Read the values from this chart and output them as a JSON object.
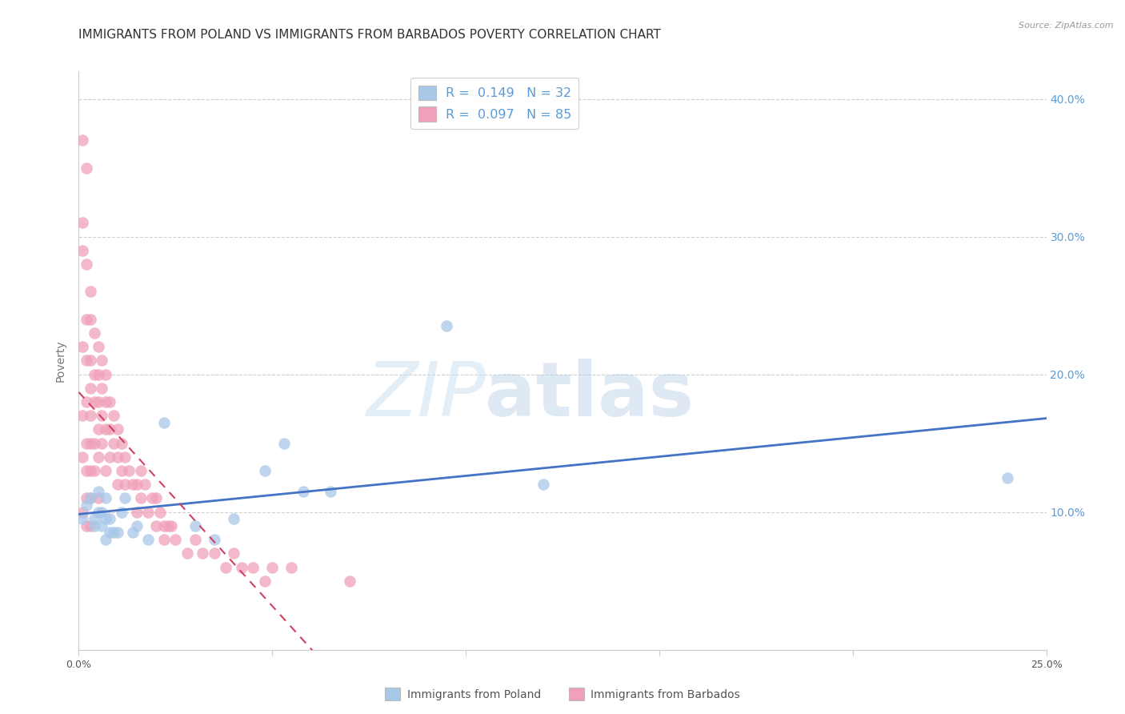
{
  "title": "IMMIGRANTS FROM POLAND VS IMMIGRANTS FROM BARBADOS POVERTY CORRELATION CHART",
  "source": "Source: ZipAtlas.com",
  "ylabel": "Poverty",
  "xlim": [
    0.0,
    0.25
  ],
  "ylim": [
    0.0,
    0.42
  ],
  "poland_R": 0.149,
  "poland_N": 32,
  "barbados_R": 0.097,
  "barbados_N": 85,
  "poland_color": "#a8c8e8",
  "barbados_color": "#f0a0b8",
  "poland_line_color": "#4472c4",
  "barbados_line_color": "#d04060",
  "poland_x": [
    0.001,
    0.002,
    0.003,
    0.004,
    0.004,
    0.005,
    0.005,
    0.006,
    0.006,
    0.007,
    0.007,
    0.007,
    0.008,
    0.008,
    0.009,
    0.01,
    0.011,
    0.012,
    0.014,
    0.015,
    0.018,
    0.022,
    0.03,
    0.035,
    0.04,
    0.048,
    0.053,
    0.058,
    0.065,
    0.095,
    0.12,
    0.24
  ],
  "poland_y": [
    0.095,
    0.105,
    0.11,
    0.095,
    0.09,
    0.1,
    0.115,
    0.1,
    0.09,
    0.095,
    0.08,
    0.11,
    0.085,
    0.095,
    0.085,
    0.085,
    0.1,
    0.11,
    0.085,
    0.09,
    0.08,
    0.165,
    0.09,
    0.08,
    0.095,
    0.13,
    0.15,
    0.115,
    0.115,
    0.235,
    0.12,
    0.125
  ],
  "barbados_x": [
    0.001,
    0.001,
    0.001,
    0.001,
    0.001,
    0.001,
    0.001,
    0.002,
    0.002,
    0.002,
    0.002,
    0.002,
    0.002,
    0.002,
    0.002,
    0.002,
    0.003,
    0.003,
    0.003,
    0.003,
    0.003,
    0.003,
    0.003,
    0.003,
    0.003,
    0.004,
    0.004,
    0.004,
    0.004,
    0.004,
    0.005,
    0.005,
    0.005,
    0.005,
    0.005,
    0.005,
    0.006,
    0.006,
    0.006,
    0.006,
    0.007,
    0.007,
    0.007,
    0.007,
    0.008,
    0.008,
    0.008,
    0.009,
    0.009,
    0.01,
    0.01,
    0.01,
    0.011,
    0.011,
    0.012,
    0.012,
    0.013,
    0.014,
    0.015,
    0.015,
    0.016,
    0.016,
    0.017,
    0.018,
    0.019,
    0.02,
    0.02,
    0.021,
    0.022,
    0.022,
    0.023,
    0.024,
    0.025,
    0.028,
    0.03,
    0.032,
    0.035,
    0.038,
    0.04,
    0.042,
    0.045,
    0.048,
    0.05,
    0.055,
    0.07
  ],
  "barbados_y": [
    0.37,
    0.31,
    0.29,
    0.22,
    0.17,
    0.14,
    0.1,
    0.35,
    0.28,
    0.24,
    0.21,
    0.18,
    0.15,
    0.13,
    0.11,
    0.09,
    0.26,
    0.24,
    0.21,
    0.19,
    0.17,
    0.15,
    0.13,
    0.11,
    0.09,
    0.23,
    0.2,
    0.18,
    0.15,
    0.13,
    0.22,
    0.2,
    0.18,
    0.16,
    0.14,
    0.11,
    0.21,
    0.19,
    0.17,
    0.15,
    0.2,
    0.18,
    0.16,
    0.13,
    0.18,
    0.16,
    0.14,
    0.17,
    0.15,
    0.16,
    0.14,
    0.12,
    0.15,
    0.13,
    0.14,
    0.12,
    0.13,
    0.12,
    0.12,
    0.1,
    0.13,
    0.11,
    0.12,
    0.1,
    0.11,
    0.11,
    0.09,
    0.1,
    0.09,
    0.08,
    0.09,
    0.09,
    0.08,
    0.07,
    0.08,
    0.07,
    0.07,
    0.06,
    0.07,
    0.06,
    0.06,
    0.05,
    0.06,
    0.06,
    0.05
  ],
  "watermark_text1": "ZIP",
  "watermark_text2": "atlas",
  "legend_label1": "Immigrants from Poland",
  "legend_label2": "Immigrants from Barbados",
  "background_color": "#ffffff",
  "grid_color": "#d0d0d0",
  "title_fontsize": 11,
  "axis_label_fontsize": 10,
  "tick_fontsize": 9,
  "right_tick_color": "#5b9bd5"
}
